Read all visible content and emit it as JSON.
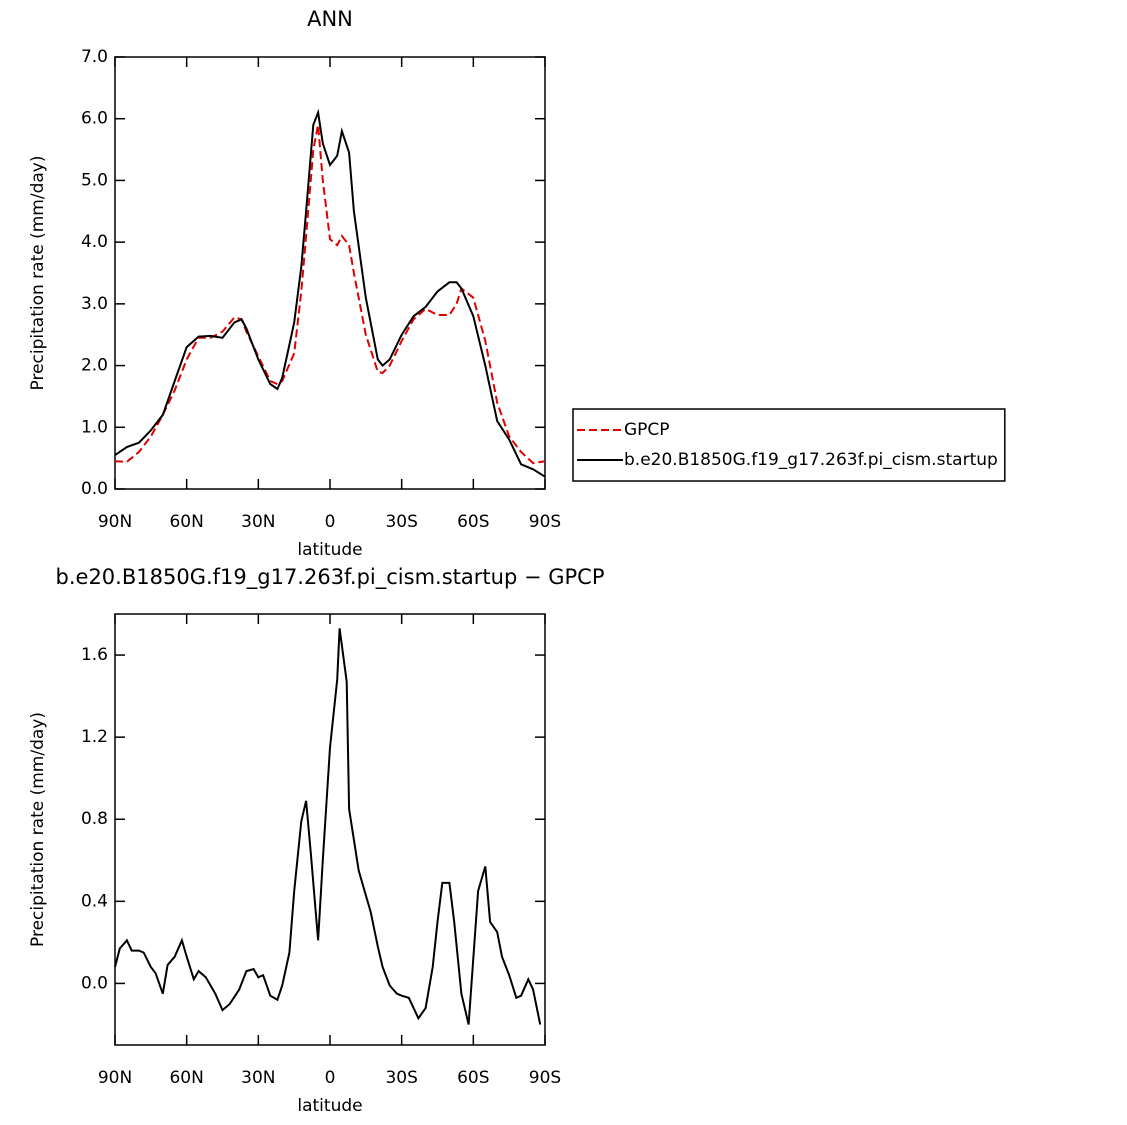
{
  "chart_data": [
    {
      "type": "line",
      "title": "ANN",
      "xlabel": "latitude",
      "ylabel": "Precipitation rate (mm/day)",
      "x": [
        90,
        85,
        80,
        75,
        70,
        65,
        60,
        55,
        50,
        45,
        40,
        37,
        35,
        30,
        25,
        22,
        20,
        15,
        12,
        10,
        7,
        5,
        3,
        0,
        -3,
        -5,
        -8,
        -10,
        -15,
        -20,
        -22,
        -25,
        -30,
        -35,
        -40,
        -45,
        -50,
        -53,
        -55,
        -60,
        -65,
        -70,
        -75,
        -80,
        -85,
        -90
      ],
      "series": [
        {
          "name": "GPCP",
          "color": "#e00000",
          "style": "dashed",
          "values": [
            0.45,
            0.44,
            0.6,
            0.85,
            1.2,
            1.6,
            2.1,
            2.45,
            2.45,
            2.55,
            2.78,
            2.75,
            2.55,
            2.15,
            1.75,
            1.7,
            1.75,
            2.2,
            3.2,
            4.1,
            5.5,
            5.9,
            5.0,
            4.05,
            3.95,
            4.1,
            3.95,
            3.5,
            2.5,
            1.9,
            1.88,
            2.0,
            2.4,
            2.75,
            2.92,
            2.82,
            2.82,
            3.0,
            3.25,
            3.1,
            2.4,
            1.4,
            0.85,
            0.6,
            0.42,
            0.45
          ]
        },
        {
          "name": "b.e20.B1850G.f19_g17.263f.pi_cism.startup",
          "color": "#000000",
          "style": "solid",
          "values": [
            0.55,
            0.68,
            0.75,
            0.95,
            1.2,
            1.75,
            2.3,
            2.47,
            2.48,
            2.45,
            2.7,
            2.75,
            2.6,
            2.1,
            1.7,
            1.62,
            1.8,
            2.7,
            3.6,
            4.5,
            5.9,
            6.1,
            5.6,
            5.25,
            5.4,
            5.8,
            5.45,
            4.5,
            3.1,
            2.1,
            2.0,
            2.1,
            2.5,
            2.8,
            2.95,
            3.2,
            3.35,
            3.35,
            3.25,
            2.8,
            2.0,
            1.1,
            0.8,
            0.4,
            0.32,
            0.2
          ]
        }
      ],
      "xlim": [
        90,
        -90
      ],
      "xticks": [
        {
          "value": 90,
          "label": "90N"
        },
        {
          "value": 60,
          "label": "60N"
        },
        {
          "value": 30,
          "label": "30N"
        },
        0,
        {
          "value": -30,
          "label": "30S"
        },
        {
          "value": -60,
          "label": "60S"
        },
        {
          "value": -90,
          "label": "90S"
        }
      ],
      "ylim": [
        0,
        7
      ],
      "yticks": [
        {
          "value": 0,
          "label": "0.0"
        },
        {
          "value": 1,
          "label": "1.0"
        },
        {
          "value": 2,
          "label": "2.0"
        },
        {
          "value": 3,
          "label": "3.0"
        },
        {
          "value": 4,
          "label": "4.0"
        },
        {
          "value": 5,
          "label": "5.0"
        },
        {
          "value": 6,
          "label": "6.0"
        },
        {
          "value": 7,
          "label": "7.0"
        }
      ],
      "legend": "right"
    },
    {
      "type": "line",
      "title": "b.e20.B1850G.f19_g17.263f.pi_cism.startup − GPCP",
      "xlabel": "latitude",
      "ylabel": "Precipitation rate (mm/day)",
      "x": [
        90,
        88,
        85,
        83,
        80,
        78,
        75,
        73,
        70,
        68,
        65,
        62,
        60,
        57,
        55,
        52,
        48,
        45,
        42,
        38,
        35,
        32,
        30,
        28,
        25,
        22,
        20,
        17,
        15,
        12,
        10,
        8,
        5,
        3,
        0,
        -3,
        -4,
        -7,
        -8,
        -12,
        -15,
        -17,
        -20,
        -22,
        -25,
        -28,
        -30,
        -33,
        -37,
        -40,
        -43,
        -45,
        -47,
        -50,
        -52,
        -55,
        -58,
        -62,
        -65,
        -67,
        -70,
        -72,
        -75,
        -78,
        -80,
        -83,
        -85,
        -88
      ],
      "series": [
        {
          "color": "#000000",
          "style": "solid",
          "values": [
            0.08,
            0.17,
            0.21,
            0.16,
            0.16,
            0.15,
            0.08,
            0.05,
            -0.05,
            0.09,
            0.13,
            0.21,
            0.13,
            0.02,
            0.06,
            0.03,
            -0.05,
            -0.13,
            -0.1,
            -0.03,
            0.06,
            0.07,
            0.03,
            0.04,
            -0.06,
            -0.08,
            -0.01,
            0.15,
            0.45,
            0.79,
            0.89,
            0.63,
            0.21,
            0.6,
            1.15,
            1.48,
            1.73,
            1.47,
            0.85,
            0.55,
            0.43,
            0.35,
            0.18,
            0.08,
            -0.01,
            -0.05,
            -0.06,
            -0.07,
            -0.17,
            -0.12,
            0.08,
            0.3,
            0.49,
            0.49,
            0.3,
            -0.05,
            -0.2,
            0.45,
            0.57,
            0.3,
            0.25,
            0.13,
            0.04,
            -0.07,
            -0.06,
            0.02,
            -0.03,
            -0.2
          ]
        }
      ],
      "xlim": [
        90,
        -90
      ],
      "xticks": [
        {
          "value": 90,
          "label": "90N"
        },
        {
          "value": 60,
          "label": "60N"
        },
        {
          "value": 30,
          "label": "30N"
        },
        0,
        {
          "value": -30,
          "label": "30S"
        },
        {
          "value": -60,
          "label": "60S"
        },
        {
          "value": -90,
          "label": "90S"
        }
      ],
      "ylim": [
        -0.3,
        1.8
      ],
      "yticks": [
        {
          "value": 0,
          "label": "0.0"
        },
        {
          "value": 0.4,
          "label": "0.4"
        },
        {
          "value": 0.8,
          "label": "0.8"
        },
        {
          "value": 1.2,
          "label": "1.2"
        },
        {
          "value": 1.6,
          "label": "1.6"
        }
      ]
    }
  ]
}
